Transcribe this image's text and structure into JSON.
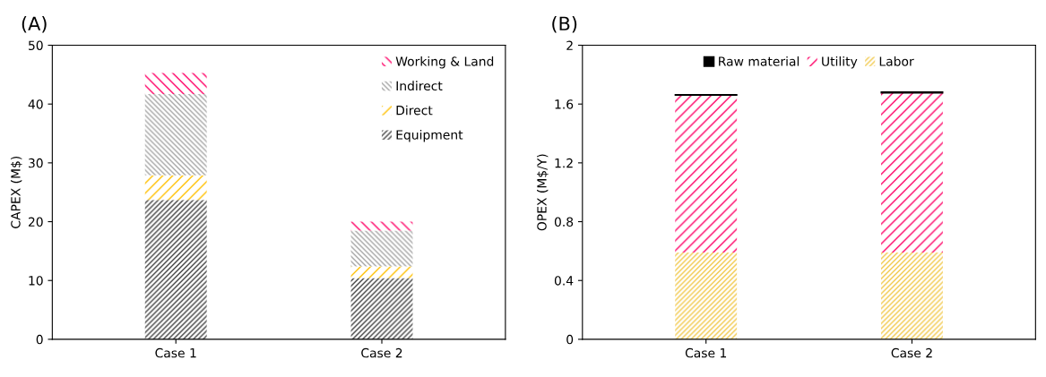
{
  "chart_data": [
    {
      "type": "bar",
      "title": "(A)",
      "ylabel": "CAPEX (M$)",
      "categories": [
        "Case 1",
        "Case 2"
      ],
      "stacked": true,
      "ylim": [
        0,
        50
      ],
      "yticks": [
        0,
        10,
        20,
        30,
        40,
        50
      ],
      "grid": false,
      "legend": "top right",
      "series": [
        {
          "name": "Equipment",
          "color": "#404040",
          "values": [
            23.7,
            10.4
          ]
        },
        {
          "name": "Direct",
          "color": "#ffc000",
          "values": [
            4.2,
            2.0
          ]
        },
        {
          "name": "Indirect",
          "color": "#a6a6a6",
          "values": [
            13.8,
            6.1
          ]
        },
        {
          "name": "Working & Land",
          "color": "#ff0066",
          "values": [
            3.6,
            1.5
          ]
        }
      ]
    },
    {
      "type": "bar",
      "title": "(B)",
      "ylabel": "OPEX (M$/Y)",
      "categories": [
        "Case 1",
        "Case 2"
      ],
      "stacked": true,
      "ylim": [
        0,
        2
      ],
      "yticks": [
        0,
        {
          "value": 0.4,
          "label": "0.4"
        },
        {
          "value": 0.8,
          "label": "0.8"
        },
        {
          "value": 1.2,
          "label": "1.2"
        },
        {
          "value": 1.6,
          "label": "1.6"
        },
        2
      ],
      "grid": false,
      "legend": "top",
      "series": [
        {
          "name": "Labor",
          "color": "#f2c94c",
          "values": [
            0.59,
            0.59
          ]
        },
        {
          "name": "Utility",
          "color": "#ff0066",
          "values": [
            1.07,
            1.085
          ]
        },
        {
          "name": "Raw material",
          "color": "#000000",
          "values": [
            0.005,
            0.008
          ]
        }
      ]
    }
  ]
}
